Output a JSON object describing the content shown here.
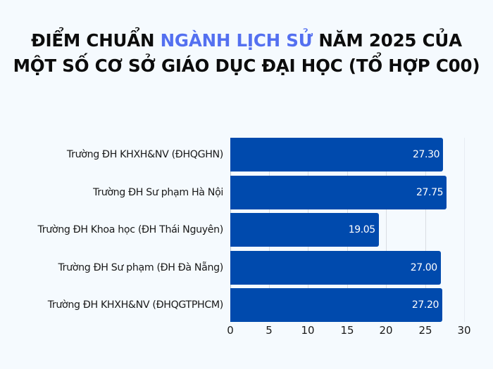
{
  "title": {
    "line1_pre": "ĐIỂM CHUẨN ",
    "line1_highlight": "NGÀNH LỊCH SỬ",
    "line1_post": " NĂM 2025 CỦA",
    "line2": "MỘT SỐ CƠ SỞ GIÁO DỤC ĐẠI HỌC (TỔ HỢP C00)"
  },
  "colors": {
    "background": "#F5FAFE",
    "bar": "#004AAD",
    "title_highlight": "#5470F0",
    "title_text": "#0C0C0C",
    "gridline": "#D9DDE2",
    "bar_label": "#FFFFFF"
  },
  "bars": [
    {
      "label": "Trường ĐH KHXH&NV (ĐHQGHN)",
      "value": 27.3,
      "display": "27.30"
    },
    {
      "label": "Trường ĐH Sư phạm Hà Nội",
      "value": 27.75,
      "display": "27.75"
    },
    {
      "label": "Trường ĐH Khoa học (ĐH Thái Nguyên)",
      "value": 19.05,
      "display": "19.05"
    },
    {
      "label": "Trường ĐH Sư phạm (ĐH Đà Nẵng)",
      "value": 27.0,
      "display": "27.00"
    },
    {
      "label": "Trường ĐH KHXH&NV (ĐHQGTPHCM)",
      "value": 27.2,
      "display": "27.20"
    }
  ],
  "x_axis": {
    "ticks": [
      "0",
      "5",
      "10",
      "15",
      "20",
      "25",
      "30"
    ]
  },
  "chart_data": {
    "type": "bar",
    "orientation": "horizontal",
    "title": "ĐIỂM CHUẨN NGÀNH LỊCH SỬ NĂM 2025 CỦA MỘT SỐ CƠ SỞ GIÁO DỤC ĐẠI HỌC (TỔ HỢP C00)",
    "categories": [
      "Trường ĐH KHXH&NV (ĐHQGHN)",
      "Trường ĐH Sư phạm Hà Nội",
      "Trường ĐH Khoa học (ĐH Thái Nguyên)",
      "Trường ĐH Sư phạm (ĐH Đà Nẵng)",
      "Trường ĐH KHXH&NV (ĐHQGTPHCM)"
    ],
    "values": [
      27.3,
      27.75,
      19.05,
      27.0,
      27.2
    ],
    "data_labels": [
      "27.30",
      "27.75",
      "19.05",
      "27.00",
      "27.20"
    ],
    "xlabel": "",
    "ylabel": "",
    "xlim": [
      0,
      30
    ],
    "x_ticks": [
      0,
      5,
      10,
      15,
      20,
      25,
      30
    ],
    "grid": true,
    "legend": null
  }
}
